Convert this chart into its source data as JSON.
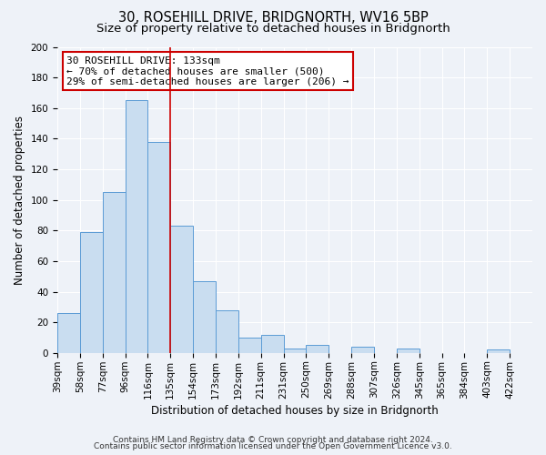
{
  "title": "30, ROSEHILL DRIVE, BRIDGNORTH, WV16 5BP",
  "subtitle": "Size of property relative to detached houses in Bridgnorth",
  "xlabel": "Distribution of detached houses by size in Bridgnorth",
  "ylabel": "Number of detached properties",
  "bin_labels": [
    "39sqm",
    "58sqm",
    "77sqm",
    "96sqm",
    "116sqm",
    "135sqm",
    "154sqm",
    "173sqm",
    "192sqm",
    "211sqm",
    "231sqm",
    "250sqm",
    "269sqm",
    "288sqm",
    "307sqm",
    "326sqm",
    "345sqm",
    "365sqm",
    "384sqm",
    "403sqm",
    "422sqm"
  ],
  "bar_heights": [
    26,
    79,
    105,
    165,
    138,
    83,
    47,
    28,
    10,
    12,
    3,
    5,
    0,
    4,
    0,
    3,
    0,
    0,
    0,
    2,
    0
  ],
  "bar_color": "#c9ddf0",
  "bar_edge_color": "#5b9bd5",
  "vline_x": 5,
  "vline_color": "#cc0000",
  "ylim": [
    0,
    200
  ],
  "yticks": [
    0,
    20,
    40,
    60,
    80,
    100,
    120,
    140,
    160,
    180,
    200
  ],
  "annotation_title": "30 ROSEHILL DRIVE: 133sqm",
  "annotation_line1": "← 70% of detached houses are smaller (500)",
  "annotation_line2": "29% of semi-detached houses are larger (206) →",
  "annotation_box_color": "#ffffff",
  "annotation_box_edge": "#cc0000",
  "footer1": "Contains HM Land Registry data © Crown copyright and database right 2024.",
  "footer2": "Contains public sector information licensed under the Open Government Licence v3.0.",
  "background_color": "#eef2f8",
  "grid_color": "#ffffff",
  "title_fontsize": 10.5,
  "subtitle_fontsize": 9.5,
  "axis_label_fontsize": 8.5,
  "tick_fontsize": 7.5,
  "annotation_fontsize": 8,
  "footer_fontsize": 6.5
}
